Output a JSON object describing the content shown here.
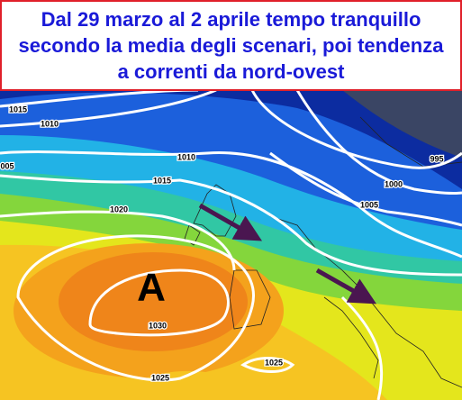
{
  "title": {
    "lines": [
      "Dal 29 marzo al 2 aprile tempo tranquillo",
      "secondo la media degli scenari, poi tendenza",
      "a correnti da nord-ovest"
    ]
  },
  "map": {
    "high_label": "A",
    "isobar_labels": [
      "1015",
      "1010",
      "005",
      "1010",
      "1015",
      "1020",
      "995",
      "1000",
      "1005",
      "1030",
      "1025",
      "1025"
    ]
  }
}
